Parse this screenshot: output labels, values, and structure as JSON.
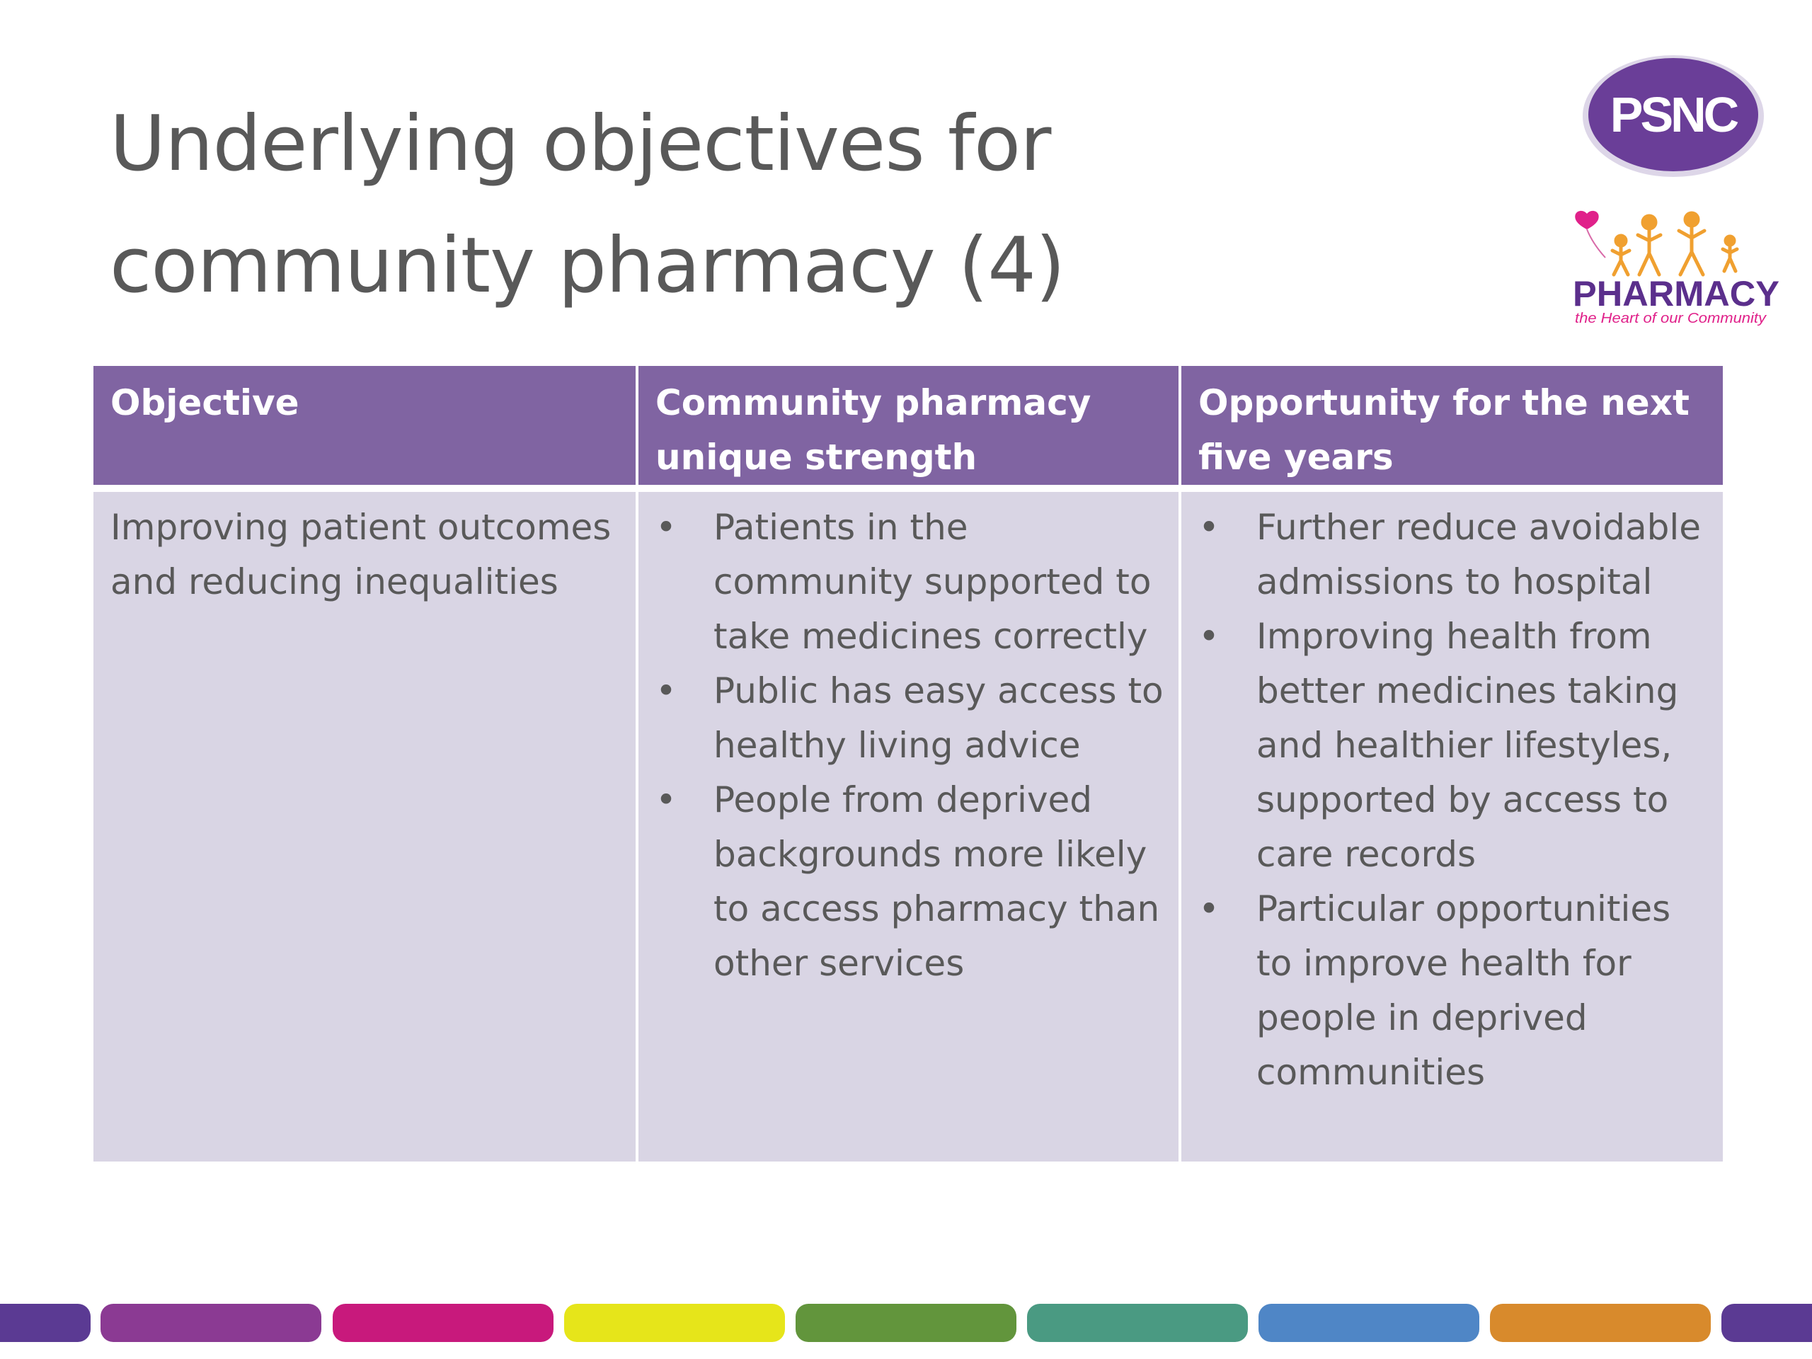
{
  "slide": {
    "title_line1": "Underlying objectives for",
    "title_line2": "community pharmacy (4)"
  },
  "logos": {
    "psnc_text": "PSNC",
    "psnc_icon": "psnc-logo-icon",
    "pharmacy_text": "PHARMACY",
    "pharmacy_tagline": "the Heart of our Community",
    "pharmacy_icon": "pharmacy-people-logo-icon"
  },
  "table": {
    "headers": {
      "objective": "Objective",
      "strength": "Community pharmacy unique strength",
      "opportunity": "Opportunity for the next five years"
    },
    "row": {
      "objective": "Improving patient outcomes and reducing inequalities",
      "strengths": [
        "Patients in the community supported to take medicines correctly",
        "Public has easy access to healthy living advice",
        "People from deprived backgrounds more likely to access pharmacy than other services"
      ],
      "opportunities": [
        "Further reduce avoidable admissions to hospital",
        "Improving health from better medicines taking and healthier lifestyles, supported by access to care records",
        "Particular opportunities to improve health for people in deprived communities"
      ]
    },
    "bullet_char": "•"
  },
  "colors": {
    "header_bg": "#8064a2",
    "body_bg": "#d9d5e4",
    "title_text": "#595959",
    "psnc_purple": "#6a3e98",
    "pharmacy_purple": "#5b2f8c",
    "heart_pink": "#e0218a",
    "people_orange": "#f0a030",
    "stripes": [
      "#5b3a93",
      "#8b3a93",
      "#c8197c",
      "#e6e51a",
      "#62953c",
      "#4a9a82",
      "#4f86c6",
      "#d88a2c",
      "#5b3a93"
    ]
  }
}
